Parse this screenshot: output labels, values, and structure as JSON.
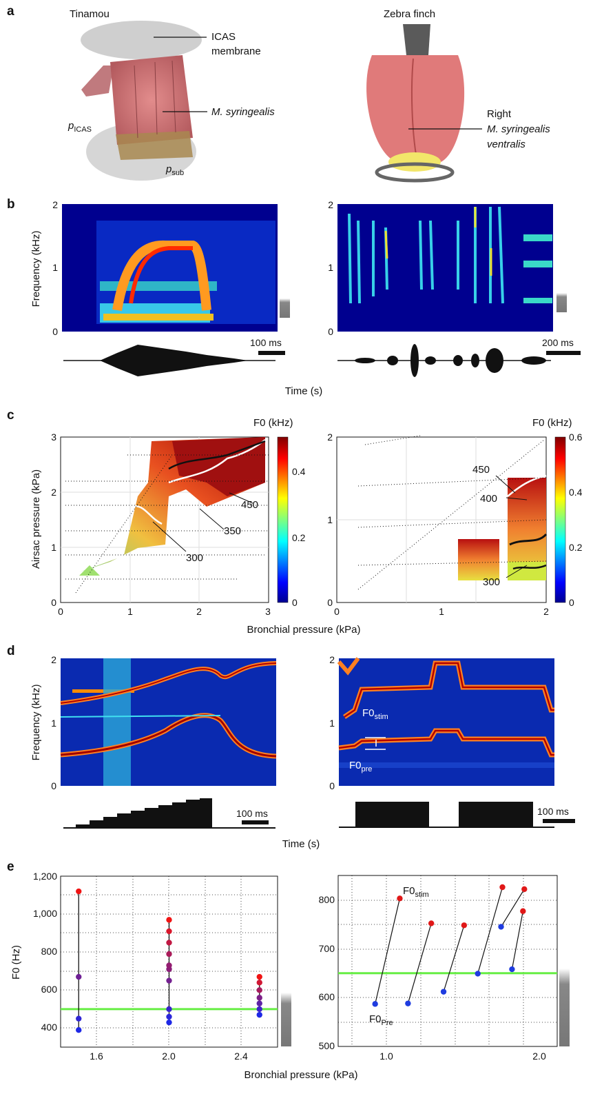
{
  "panels": [
    "a",
    "b",
    "c",
    "d",
    "e"
  ],
  "a": {
    "left_title": "Tinamou",
    "right_title": "Zebra finch",
    "icas_1": "ICAS",
    "icas_2": "membrane",
    "msyr": "M. syringealis",
    "p_icas_main": "p",
    "p_icas_sub": "ICAS",
    "p_sub_main": "p",
    "p_sub_sub": "sub",
    "right_1": "Right",
    "right_2": "M. syringealis",
    "right_3": "ventralis"
  },
  "b": {
    "ylabel": "Frequency (kHz)",
    "yticks": [
      "0",
      "1",
      "2"
    ],
    "xlabel": "Time (s)",
    "left_scale": "100 ms",
    "right_scale": "200 ms"
  },
  "c": {
    "ylabel": "Airsac pressure (kPa)",
    "xlabel": "Bronchial pressure (kPa)",
    "left_xticks": [
      "0",
      "1",
      "2",
      "3"
    ],
    "left_yticks": [
      "0",
      "1",
      "2",
      "3"
    ],
    "right_xticks": [
      "0",
      "1",
      "2"
    ],
    "right_yticks": [
      "0",
      "1",
      "2"
    ],
    "cbar_title": "F0 (kHz)",
    "left_cbar_ticks": [
      "0",
      "0.2",
      "0.4"
    ],
    "right_cbar_ticks": [
      "0",
      "0.2",
      "0.4",
      "0.6"
    ],
    "left_contours": [
      "450",
      "350",
      "300"
    ],
    "right_contours": [
      "450",
      "400",
      "300"
    ]
  },
  "d": {
    "ylabel": "Frequency (kHz)",
    "yticks": [
      "0",
      "1",
      "2"
    ],
    "xlabel": "Time (s)",
    "scale": "100 ms",
    "f0stim_main": "F0",
    "f0stim_sub": "stim",
    "f0pre_main": "F0",
    "f0pre_sub": "pre"
  },
  "e": {
    "ylabel": "F0 (Hz)",
    "xlabel": "Bronchial pressure (kPa)",
    "left_xticks": [
      "1.6",
      "2.0",
      "2.4"
    ],
    "left_yticks": [
      "400",
      "600",
      "800",
      "1,000",
      "1,200"
    ],
    "right_xticks": [
      "1.0",
      "2.0"
    ],
    "right_yticks": [
      "500",
      "600",
      "700",
      "800"
    ],
    "f0stim_main": "F0",
    "f0stim_sub": "stim",
    "f0pre_main": "F0",
    "f0pre_sub": "Pre"
  },
  "chart_data": [
    {
      "type": "scatter",
      "panel": "e-left",
      "xlabel": "Bronchial pressure (kPa)",
      "ylabel": "F0 (Hz)",
      "xlim": [
        1.4,
        2.6
      ],
      "ylim": [
        300,
        1200
      ],
      "reference_line": 500,
      "groups": [
        {
          "x": 1.5,
          "values": [
            390,
            450,
            670,
            1120
          ]
        },
        {
          "x": 2.0,
          "values": [
            430,
            460,
            500,
            650,
            710,
            730,
            790,
            850,
            910,
            970
          ]
        },
        {
          "x": 2.5,
          "values": [
            470,
            500,
            530,
            560,
            600,
            640,
            670
          ]
        }
      ]
    },
    {
      "type": "scatter",
      "panel": "e-right",
      "xlabel": "Bronchial pressure (kPa)",
      "ylabel": "F0 (Hz)",
      "xlim": [
        0.6,
        2.2
      ],
      "ylim": [
        500,
        850
      ],
      "reference_line": 650,
      "pairs": [
        {
          "pre": [
            0.87,
            587
          ],
          "stim": [
            1.05,
            803
          ]
        },
        {
          "pre": [
            1.11,
            588
          ],
          "stim": [
            1.28,
            752
          ]
        },
        {
          "pre": [
            1.37,
            612
          ],
          "stim": [
            1.52,
            748
          ]
        },
        {
          "pre": [
            1.62,
            649
          ],
          "stim": [
            1.8,
            826
          ]
        },
        {
          "pre": [
            1.79,
            745
          ],
          "stim": [
            1.96,
            822
          ]
        },
        {
          "pre": [
            1.87,
            658
          ],
          "stim": [
            1.95,
            777
          ]
        }
      ]
    }
  ]
}
